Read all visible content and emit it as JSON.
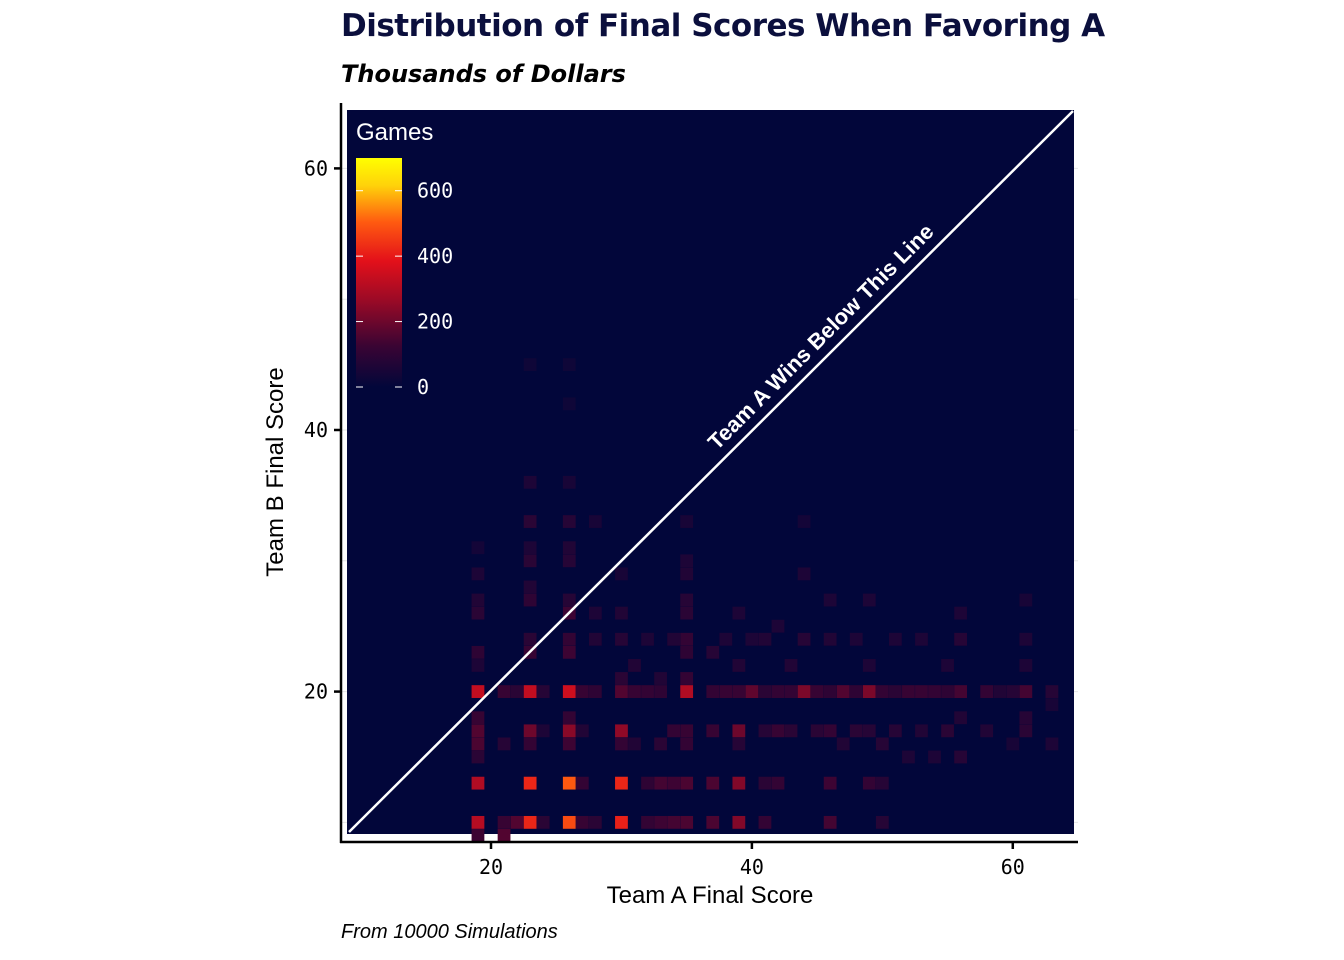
{
  "title": "Distribution of Final Scores When Favoring A",
  "subtitle": "Thousands of Dollars",
  "caption": "From 10000 Simulations",
  "chart_data": {
    "type": "heatmap",
    "xlabel": "Team A Final Score",
    "ylabel": "Team B Final Score",
    "xlim": [
      8.5,
      65
    ],
    "ylim": [
      8.5,
      65
    ],
    "x_ticks": [
      20,
      40,
      60
    ],
    "y_ticks": [
      20,
      40,
      60
    ],
    "background_color": "#02063a",
    "colorscale": [
      "#02063a",
      "#3a0433",
      "#9b0a26",
      "#e3101a",
      "#ff5a10",
      "#ffd20a",
      "#ffff00"
    ],
    "legend": {
      "title": "Games",
      "placement": "top-left",
      "ticks": [
        0,
        200,
        400,
        600
      ],
      "range": [
        0,
        700
      ]
    },
    "diagonal_annotation": "Team A Wins Below This Line",
    "grid": true,
    "cells": [
      {
        "x": 19,
        "y": 10,
        "v": 310
      },
      {
        "x": 19,
        "y": 13,
        "v": 300
      },
      {
        "x": 19,
        "y": 16,
        "v": 150
      },
      {
        "x": 19,
        "y": 17,
        "v": 160
      },
      {
        "x": 19,
        "y": 20,
        "v": 330
      },
      {
        "x": 19,
        "y": 18,
        "v": 120
      },
      {
        "x": 19,
        "y": 23,
        "v": 100
      },
      {
        "x": 19,
        "y": 26,
        "v": 90
      },
      {
        "x": 19,
        "y": 27,
        "v": 70
      },
      {
        "x": 19,
        "y": 9,
        "v": 130
      },
      {
        "x": 19,
        "y": 15,
        "v": 90
      },
      {
        "x": 19,
        "y": 22,
        "v": 60
      },
      {
        "x": 19,
        "y": 29,
        "v": 60
      },
      {
        "x": 19,
        "y": 31,
        "v": 40
      },
      {
        "x": 21,
        "y": 9,
        "v": 160
      },
      {
        "x": 21,
        "y": 10,
        "v": 120
      },
      {
        "x": 21,
        "y": 20,
        "v": 120
      },
      {
        "x": 21,
        "y": 16,
        "v": 80
      },
      {
        "x": 22,
        "y": 10,
        "v": 160
      },
      {
        "x": 22,
        "y": 20,
        "v": 90
      },
      {
        "x": 23,
        "y": 10,
        "v": 420
      },
      {
        "x": 23,
        "y": 13,
        "v": 420
      },
      {
        "x": 23,
        "y": 17,
        "v": 200
      },
      {
        "x": 23,
        "y": 20,
        "v": 330
      },
      {
        "x": 23,
        "y": 16,
        "v": 110
      },
      {
        "x": 23,
        "y": 23,
        "v": 120
      },
      {
        "x": 23,
        "y": 24,
        "v": 90
      },
      {
        "x": 23,
        "y": 27,
        "v": 100
      },
      {
        "x": 23,
        "y": 28,
        "v": 70
      },
      {
        "x": 23,
        "y": 30,
        "v": 90
      },
      {
        "x": 23,
        "y": 31,
        "v": 60
      },
      {
        "x": 23,
        "y": 33,
        "v": 90
      },
      {
        "x": 23,
        "y": 36,
        "v": 60
      },
      {
        "x": 23,
        "y": 45,
        "v": 30
      },
      {
        "x": 24,
        "y": 10,
        "v": 90
      },
      {
        "x": 24,
        "y": 20,
        "v": 80
      },
      {
        "x": 24,
        "y": 17,
        "v": 60
      },
      {
        "x": 26,
        "y": 10,
        "v": 480
      },
      {
        "x": 26,
        "y": 13,
        "v": 500
      },
      {
        "x": 26,
        "y": 17,
        "v": 240
      },
      {
        "x": 26,
        "y": 20,
        "v": 350
      },
      {
        "x": 26,
        "y": 16,
        "v": 130
      },
      {
        "x": 26,
        "y": 18,
        "v": 110
      },
      {
        "x": 26,
        "y": 23,
        "v": 130
      },
      {
        "x": 26,
        "y": 24,
        "v": 110
      },
      {
        "x": 26,
        "y": 26,
        "v": 130
      },
      {
        "x": 26,
        "y": 27,
        "v": 80
      },
      {
        "x": 26,
        "y": 30,
        "v": 80
      },
      {
        "x": 26,
        "y": 31,
        "v": 70
      },
      {
        "x": 26,
        "y": 33,
        "v": 80
      },
      {
        "x": 26,
        "y": 36,
        "v": 50
      },
      {
        "x": 26,
        "y": 42,
        "v": 30
      },
      {
        "x": 26,
        "y": 45,
        "v": 30
      },
      {
        "x": 27,
        "y": 10,
        "v": 120
      },
      {
        "x": 27,
        "y": 13,
        "v": 110
      },
      {
        "x": 27,
        "y": 20,
        "v": 120
      },
      {
        "x": 27,
        "y": 17,
        "v": 70
      },
      {
        "x": 28,
        "y": 10,
        "v": 90
      },
      {
        "x": 28,
        "y": 20,
        "v": 100
      },
      {
        "x": 28,
        "y": 24,
        "v": 70
      },
      {
        "x": 28,
        "y": 26,
        "v": 60
      },
      {
        "x": 28,
        "y": 33,
        "v": 50
      },
      {
        "x": 30,
        "y": 10,
        "v": 410
      },
      {
        "x": 30,
        "y": 13,
        "v": 420
      },
      {
        "x": 30,
        "y": 17,
        "v": 250
      },
      {
        "x": 30,
        "y": 20,
        "v": 160
      },
      {
        "x": 30,
        "y": 16,
        "v": 110
      },
      {
        "x": 30,
        "y": 21,
        "v": 90
      },
      {
        "x": 30,
        "y": 24,
        "v": 80
      },
      {
        "x": 30,
        "y": 26,
        "v": 70
      },
      {
        "x": 30,
        "y": 29,
        "v": 50
      },
      {
        "x": 31,
        "y": 20,
        "v": 120
      },
      {
        "x": 31,
        "y": 22,
        "v": 70
      },
      {
        "x": 31,
        "y": 16,
        "v": 70
      },
      {
        "x": 32,
        "y": 10,
        "v": 110
      },
      {
        "x": 32,
        "y": 13,
        "v": 100
      },
      {
        "x": 32,
        "y": 20,
        "v": 110
      },
      {
        "x": 32,
        "y": 24,
        "v": 60
      },
      {
        "x": 33,
        "y": 10,
        "v": 130
      },
      {
        "x": 33,
        "y": 13,
        "v": 140
      },
      {
        "x": 33,
        "y": 16,
        "v": 90
      },
      {
        "x": 33,
        "y": 20,
        "v": 100
      },
      {
        "x": 33,
        "y": 21,
        "v": 70
      },
      {
        "x": 34,
        "y": 10,
        "v": 140
      },
      {
        "x": 34,
        "y": 13,
        "v": 130
      },
      {
        "x": 34,
        "y": 17,
        "v": 110
      },
      {
        "x": 34,
        "y": 24,
        "v": 70
      },
      {
        "x": 35,
        "y": 10,
        "v": 150
      },
      {
        "x": 35,
        "y": 13,
        "v": 150
      },
      {
        "x": 35,
        "y": 16,
        "v": 110
      },
      {
        "x": 35,
        "y": 17,
        "v": 120
      },
      {
        "x": 35,
        "y": 20,
        "v": 300
      },
      {
        "x": 35,
        "y": 21,
        "v": 110
      },
      {
        "x": 35,
        "y": 23,
        "v": 100
      },
      {
        "x": 35,
        "y": 24,
        "v": 110
      },
      {
        "x": 35,
        "y": 26,
        "v": 90
      },
      {
        "x": 35,
        "y": 27,
        "v": 80
      },
      {
        "x": 35,
        "y": 29,
        "v": 70
      },
      {
        "x": 35,
        "y": 30,
        "v": 60
      },
      {
        "x": 35,
        "y": 33,
        "v": 50
      },
      {
        "x": 37,
        "y": 10,
        "v": 150
      },
      {
        "x": 37,
        "y": 13,
        "v": 150
      },
      {
        "x": 37,
        "y": 17,
        "v": 120
      },
      {
        "x": 37,
        "y": 20,
        "v": 110
      },
      {
        "x": 37,
        "y": 23,
        "v": 80
      },
      {
        "x": 38,
        "y": 20,
        "v": 120
      },
      {
        "x": 38,
        "y": 24,
        "v": 60
      },
      {
        "x": 39,
        "y": 10,
        "v": 230
      },
      {
        "x": 39,
        "y": 13,
        "v": 230
      },
      {
        "x": 39,
        "y": 17,
        "v": 200
      },
      {
        "x": 39,
        "y": 20,
        "v": 120
      },
      {
        "x": 39,
        "y": 16,
        "v": 80
      },
      {
        "x": 39,
        "y": 22,
        "v": 70
      },
      {
        "x": 39,
        "y": 26,
        "v": 60
      },
      {
        "x": 40,
        "y": 20,
        "v": 180
      },
      {
        "x": 40,
        "y": 24,
        "v": 60
      },
      {
        "x": 41,
        "y": 10,
        "v": 110
      },
      {
        "x": 41,
        "y": 13,
        "v": 90
      },
      {
        "x": 41,
        "y": 17,
        "v": 80
      },
      {
        "x": 41,
        "y": 20,
        "v": 90
      },
      {
        "x": 41,
        "y": 24,
        "v": 70
      },
      {
        "x": 42,
        "y": 13,
        "v": 110
      },
      {
        "x": 42,
        "y": 17,
        "v": 120
      },
      {
        "x": 42,
        "y": 20,
        "v": 110
      },
      {
        "x": 42,
        "y": 25,
        "v": 60
      },
      {
        "x": 43,
        "y": 17,
        "v": 90
      },
      {
        "x": 43,
        "y": 20,
        "v": 110
      },
      {
        "x": 43,
        "y": 22,
        "v": 70
      },
      {
        "x": 44,
        "y": 20,
        "v": 220
      },
      {
        "x": 44,
        "y": 24,
        "v": 80
      },
      {
        "x": 44,
        "y": 29,
        "v": 60
      },
      {
        "x": 44,
        "y": 33,
        "v": 40
      },
      {
        "x": 45,
        "y": 20,
        "v": 120
      },
      {
        "x": 45,
        "y": 17,
        "v": 90
      },
      {
        "x": 46,
        "y": 10,
        "v": 140
      },
      {
        "x": 46,
        "y": 13,
        "v": 130
      },
      {
        "x": 46,
        "y": 17,
        "v": 110
      },
      {
        "x": 46,
        "y": 20,
        "v": 100
      },
      {
        "x": 46,
        "y": 24,
        "v": 70
      },
      {
        "x": 46,
        "y": 27,
        "v": 60
      },
      {
        "x": 47,
        "y": 20,
        "v": 160
      },
      {
        "x": 47,
        "y": 16,
        "v": 70
      },
      {
        "x": 48,
        "y": 17,
        "v": 90
      },
      {
        "x": 48,
        "y": 20,
        "v": 100
      },
      {
        "x": 48,
        "y": 24,
        "v": 60
      },
      {
        "x": 49,
        "y": 20,
        "v": 220
      },
      {
        "x": 49,
        "y": 13,
        "v": 110
      },
      {
        "x": 49,
        "y": 17,
        "v": 80
      },
      {
        "x": 49,
        "y": 22,
        "v": 60
      },
      {
        "x": 49,
        "y": 27,
        "v": 60
      },
      {
        "x": 50,
        "y": 10,
        "v": 80
      },
      {
        "x": 50,
        "y": 13,
        "v": 80
      },
      {
        "x": 50,
        "y": 16,
        "v": 80
      },
      {
        "x": 50,
        "y": 20,
        "v": 110
      },
      {
        "x": 51,
        "y": 17,
        "v": 80
      },
      {
        "x": 51,
        "y": 20,
        "v": 90
      },
      {
        "x": 51,
        "y": 24,
        "v": 60
      },
      {
        "x": 52,
        "y": 20,
        "v": 120
      },
      {
        "x": 52,
        "y": 15,
        "v": 60
      },
      {
        "x": 53,
        "y": 20,
        "v": 120
      },
      {
        "x": 53,
        "y": 17,
        "v": 70
      },
      {
        "x": 53,
        "y": 24,
        "v": 60
      },
      {
        "x": 54,
        "y": 20,
        "v": 110
      },
      {
        "x": 54,
        "y": 15,
        "v": 60
      },
      {
        "x": 55,
        "y": 17,
        "v": 90
      },
      {
        "x": 55,
        "y": 20,
        "v": 100
      },
      {
        "x": 55,
        "y": 22,
        "v": 60
      },
      {
        "x": 56,
        "y": 20,
        "v": 140
      },
      {
        "x": 56,
        "y": 15,
        "v": 80
      },
      {
        "x": 56,
        "y": 18,
        "v": 70
      },
      {
        "x": 56,
        "y": 24,
        "v": 80
      },
      {
        "x": 56,
        "y": 26,
        "v": 60
      },
      {
        "x": 58,
        "y": 20,
        "v": 110
      },
      {
        "x": 58,
        "y": 17,
        "v": 70
      },
      {
        "x": 59,
        "y": 20,
        "v": 70
      },
      {
        "x": 60,
        "y": 20,
        "v": 80
      },
      {
        "x": 60,
        "y": 16,
        "v": 50
      },
      {
        "x": 61,
        "y": 20,
        "v": 140
      },
      {
        "x": 61,
        "y": 17,
        "v": 90
      },
      {
        "x": 61,
        "y": 18,
        "v": 80
      },
      {
        "x": 61,
        "y": 22,
        "v": 60
      },
      {
        "x": 61,
        "y": 24,
        "v": 60
      },
      {
        "x": 61,
        "y": 27,
        "v": 50
      },
      {
        "x": 63,
        "y": 20,
        "v": 80
      },
      {
        "x": 63,
        "y": 16,
        "v": 60
      },
      {
        "x": 63,
        "y": 19,
        "v": 50
      }
    ]
  }
}
